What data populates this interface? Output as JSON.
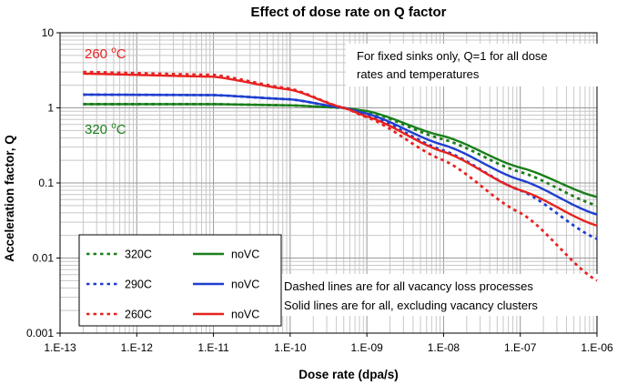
{
  "chart_data": {
    "type": "line",
    "title": "Effect of dose rate on Q factor",
    "xlabel": "Dose rate (dpa/s)",
    "ylabel": "Acceleration factor, Q",
    "xscale": "log",
    "yscale": "log",
    "xlim": [
      1e-13,
      1e-06
    ],
    "ylim": [
      0.001,
      10
    ],
    "grid": true,
    "x_tick_labels": [
      "1.E-13",
      "1.E-12",
      "1.E-11",
      "1.E-10",
      "1.E-09",
      "1.E-08",
      "1.E-07",
      "1.E-06"
    ],
    "y_tick_labels": [
      "0.001",
      "0.01",
      "0.1",
      "1",
      "10"
    ],
    "x_domain_start": 2e-13,
    "series": [
      {
        "name": "320C",
        "style": "dashed",
        "color": "#1a7f1a",
        "points": [
          [
            2e-13,
            1.12
          ],
          [
            1e-11,
            1.12
          ],
          [
            1e-10,
            1.08
          ],
          [
            5e-10,
            1.0
          ],
          [
            1e-09,
            0.9
          ],
          [
            1e-08,
            0.38
          ],
          [
            1e-07,
            0.14
          ],
          [
            1e-06,
            0.05
          ]
        ]
      },
      {
        "name": "noVC",
        "style": "solid",
        "color": "#1a7f1a",
        "points": [
          [
            2e-13,
            1.12
          ],
          [
            1e-11,
            1.12
          ],
          [
            1e-10,
            1.08
          ],
          [
            5e-10,
            1.0
          ],
          [
            1e-09,
            0.91
          ],
          [
            1e-08,
            0.42
          ],
          [
            1e-07,
            0.16
          ],
          [
            1e-06,
            0.065
          ]
        ]
      },
      {
        "name": "290C",
        "style": "dashed",
        "color": "#1f3fcf",
        "points": [
          [
            2e-13,
            1.5
          ],
          [
            1e-11,
            1.48
          ],
          [
            1e-10,
            1.3
          ],
          [
            5e-10,
            1.0
          ],
          [
            1e-09,
            0.82
          ],
          [
            1e-08,
            0.27
          ],
          [
            1e-07,
            0.08
          ],
          [
            1e-06,
            0.018
          ]
        ]
      },
      {
        "name": "noVC",
        "style": "solid",
        "color": "#1f3fcf",
        "points": [
          [
            2e-13,
            1.5
          ],
          [
            1e-11,
            1.48
          ],
          [
            1e-10,
            1.3
          ],
          [
            5e-10,
            1.0
          ],
          [
            1e-09,
            0.84
          ],
          [
            1e-08,
            0.32
          ],
          [
            1e-07,
            0.11
          ],
          [
            1e-06,
            0.038
          ]
        ]
      },
      {
        "name": "260C",
        "style": "dashed",
        "color": "#e8221f",
        "points": [
          [
            2e-13,
            3.0
          ],
          [
            1e-11,
            2.75
          ],
          [
            1e-10,
            1.8
          ],
          [
            5e-10,
            1.0
          ],
          [
            1e-09,
            0.75
          ],
          [
            1e-08,
            0.2
          ],
          [
            1e-07,
            0.04
          ],
          [
            1e-06,
            0.005
          ]
        ]
      },
      {
        "name": "noVC",
        "style": "solid",
        "color": "#e8221f",
        "points": [
          [
            2e-13,
            2.85
          ],
          [
            1e-11,
            2.6
          ],
          [
            1e-10,
            1.75
          ],
          [
            5e-10,
            1.0
          ],
          [
            1e-09,
            0.77
          ],
          [
            1e-08,
            0.26
          ],
          [
            1e-07,
            0.08
          ],
          [
            1e-06,
            0.027
          ]
        ]
      }
    ],
    "legend": {
      "placement": "bottom-left",
      "entries": [
        {
          "label": "320C",
          "style": "dashed",
          "color": "#1a7f1a"
        },
        {
          "label": "noVC",
          "style": "solid",
          "color": "#1a7f1a"
        },
        {
          "label": "290C",
          "style": "dashed",
          "color": "#1f3fcf"
        },
        {
          "label": "noVC",
          "style": "solid",
          "color": "#1f3fcf"
        },
        {
          "label": "260C",
          "style": "dashed",
          "color": "#e8221f"
        },
        {
          "label": "noVC",
          "style": "solid",
          "color": "#e8221f"
        }
      ]
    },
    "annotations": {
      "temp_high": {
        "value": "260 ",
        "unit_super": "o",
        "unit": "C",
        "color": "#e8221f"
      },
      "temp_low": {
        "value": "320 ",
        "unit_super": "o",
        "unit": "C",
        "color": "#1a7f1a"
      },
      "fixed_sinks_line1": "For fixed sinks only, Q=1 for all dose",
      "fixed_sinks_line2": "rates and temperatures",
      "dashed_note": "Dashed lines are for all vacancy loss processes",
      "solid_note": "Solid lines are for all, excluding vacancy clusters"
    }
  }
}
